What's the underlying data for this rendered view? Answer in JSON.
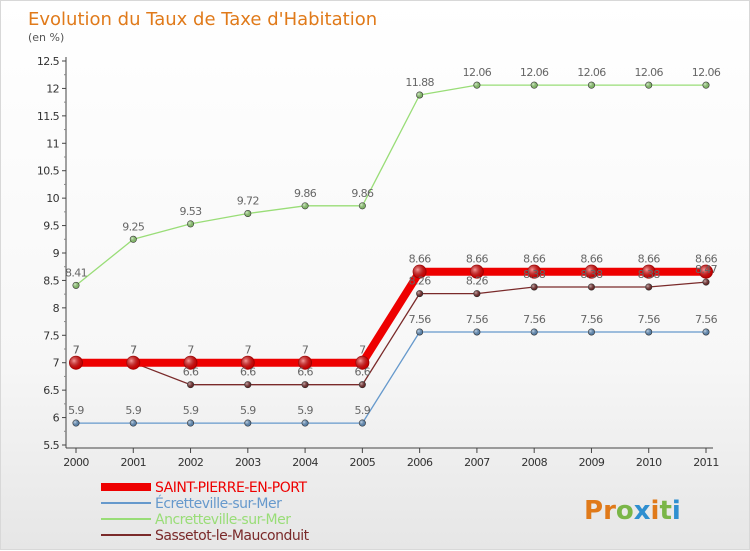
{
  "chart_data": {
    "type": "line",
    "title": "Evolution du Taux de Taxe d'Habitation",
    "subtitle": "(en %)",
    "ylim": [
      5.5,
      12.5
    ],
    "y_ticks": [
      "5.5",
      "6",
      "6.5",
      "7",
      "7.5",
      "8",
      "8.5",
      "9",
      "9.5",
      "10",
      "10.5",
      "11",
      "11.5",
      "12",
      "12.5"
    ],
    "x": [
      "2000",
      "2001",
      "2002",
      "2003",
      "2004",
      "2005",
      "2006",
      "2007",
      "2008",
      "2009",
      "2010",
      "2011"
    ],
    "grid": false,
    "legend_position": "bottom-left",
    "series": [
      {
        "name": "SAINT-PIERRE-EN-PORT",
        "color": "#ee0000",
        "values": [
          7,
          7,
          7,
          7,
          7,
          7,
          8.66,
          8.66,
          8.66,
          8.66,
          8.66,
          8.66
        ],
        "labels": [
          "7",
          "7",
          "7",
          "7",
          "7",
          "7",
          "8.66",
          "8.66",
          "8.66",
          "8.66",
          "8.66",
          "8.66"
        ]
      },
      {
        "name": "Écretteville-sur-Mer",
        "color": "#6699cc",
        "values": [
          5.9,
          5.9,
          5.9,
          5.9,
          5.9,
          5.9,
          7.56,
          7.56,
          7.56,
          7.56,
          7.56,
          7.56
        ],
        "labels": [
          "5.9",
          "5.9",
          "5.9",
          "5.9",
          "5.9",
          "5.9",
          "7.56",
          "7.56",
          "7.56",
          "7.56",
          "7.56",
          "7.56"
        ]
      },
      {
        "name": "Ancretteville-sur-Mer",
        "color": "#99dd77",
        "values": [
          8.41,
          9.25,
          9.53,
          9.72,
          9.86,
          9.86,
          11.88,
          12.06,
          12.06,
          12.06,
          12.06,
          12.06
        ],
        "labels": [
          "8.41",
          "9.25",
          "9.53",
          "9.72",
          "9.86",
          "9.86",
          "11.88",
          "12.06",
          "12.06",
          "12.06",
          "12.06",
          "12.06"
        ]
      },
      {
        "name": "Sassetot-le-Mauconduit",
        "color": "#7a2a2a",
        "values": [
          7,
          7,
          6.6,
          6.6,
          6.6,
          6.6,
          8.26,
          8.26,
          8.38,
          8.38,
          8.38,
          8.47
        ],
        "labels": [
          "7",
          "7",
          "6.6",
          "6.6",
          "6.6",
          "6.6",
          "8.26",
          "8.26",
          "8.38",
          "8.38",
          "8.38",
          "8.47"
        ]
      }
    ]
  },
  "logo": {
    "text": "Proxiti"
  }
}
